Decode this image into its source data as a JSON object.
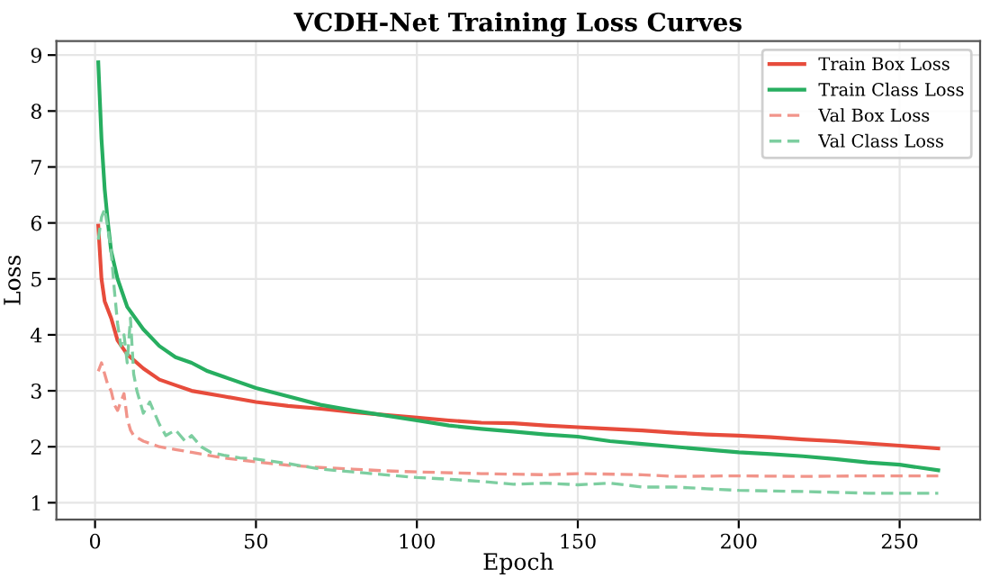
{
  "chart_data": {
    "type": "line",
    "title": "VCDH-Net Training Loss Curves",
    "xlabel": "Epoch",
    "ylabel": "Loss",
    "xlim": [
      -12,
      275
    ],
    "xticks": [
      0,
      50,
      100,
      150,
      200,
      250
    ],
    "ylim": [
      0.7,
      9.25
    ],
    "yticks": [
      1,
      2,
      3,
      4,
      5,
      6,
      7,
      8,
      9
    ],
    "grid": true,
    "legend": "top right",
    "marker": "none",
    "series": [
      {
        "name": "Train Box Loss",
        "color": "#e74c3c",
        "line_style": "solid",
        "x": [
          1,
          2,
          3,
          5,
          7,
          10,
          15,
          20,
          25,
          30,
          40,
          50,
          60,
          70,
          80,
          90,
          100,
          110,
          120,
          130,
          140,
          150,
          160,
          170,
          180,
          190,
          200,
          210,
          220,
          230,
          240,
          250,
          262
        ],
        "values": [
          5.95,
          5.0,
          4.6,
          4.3,
          3.9,
          3.65,
          3.4,
          3.2,
          3.1,
          3.0,
          2.9,
          2.8,
          2.73,
          2.68,
          2.62,
          2.57,
          2.52,
          2.47,
          2.43,
          2.42,
          2.38,
          2.35,
          2.32,
          2.29,
          2.25,
          2.22,
          2.2,
          2.17,
          2.13,
          2.1,
          2.06,
          2.02,
          1.97
        ]
      },
      {
        "name": "Train Class Loss",
        "color": "#27ae60",
        "line_style": "solid",
        "x": [
          1,
          2,
          3,
          4,
          5,
          7,
          10,
          15,
          20,
          25,
          30,
          35,
          40,
          50,
          60,
          70,
          80,
          90,
          100,
          110,
          120,
          130,
          140,
          150,
          160,
          170,
          180,
          190,
          200,
          210,
          220,
          230,
          240,
          250,
          262
        ],
        "values": [
          8.87,
          7.5,
          6.6,
          6.0,
          5.5,
          5.0,
          4.5,
          4.1,
          3.8,
          3.6,
          3.5,
          3.35,
          3.25,
          3.05,
          2.9,
          2.75,
          2.65,
          2.56,
          2.47,
          2.38,
          2.32,
          2.27,
          2.22,
          2.18,
          2.1,
          2.05,
          2.0,
          1.95,
          1.9,
          1.87,
          1.83,
          1.78,
          1.72,
          1.68,
          1.58
        ]
      },
      {
        "name": "Val Box Loss",
        "color": "#f1948a",
        "line_style": "dashed",
        "x": [
          1,
          2,
          3,
          4,
          5,
          6,
          7,
          8,
          9,
          10,
          11,
          12,
          15,
          20,
          25,
          30,
          40,
          50,
          60,
          70,
          80,
          90,
          100,
          120,
          140,
          150,
          170,
          180,
          200,
          220,
          240,
          262
        ],
        "values": [
          3.35,
          3.5,
          3.3,
          3.1,
          3.0,
          2.75,
          2.65,
          2.8,
          2.95,
          2.5,
          2.3,
          2.2,
          2.1,
          2.0,
          1.95,
          1.9,
          1.8,
          1.73,
          1.67,
          1.63,
          1.6,
          1.57,
          1.55,
          1.52,
          1.5,
          1.52,
          1.5,
          1.47,
          1.48,
          1.47,
          1.48,
          1.48
        ]
      },
      {
        "name": "Val Class Loss",
        "color": "#7dcea0",
        "line_style": "dashed",
        "x": [
          1,
          2,
          3,
          4,
          5,
          6,
          7,
          8,
          9,
          10,
          11,
          12,
          13,
          15,
          17,
          20,
          22,
          25,
          28,
          30,
          33,
          36,
          40,
          45,
          50,
          60,
          70,
          80,
          90,
          100,
          110,
          120,
          130,
          140,
          150,
          160,
          170,
          180,
          190,
          200,
          220,
          240,
          262
        ],
        "values": [
          5.7,
          6.1,
          6.25,
          5.9,
          5.5,
          4.8,
          4.2,
          3.8,
          4.0,
          3.5,
          4.3,
          3.3,
          3.0,
          2.6,
          2.8,
          2.4,
          2.2,
          2.3,
          2.1,
          2.2,
          2.0,
          1.9,
          1.85,
          1.8,
          1.78,
          1.7,
          1.6,
          1.55,
          1.5,
          1.45,
          1.42,
          1.38,
          1.33,
          1.35,
          1.32,
          1.35,
          1.28,
          1.28,
          1.25,
          1.22,
          1.2,
          1.17,
          1.17
        ]
      }
    ]
  }
}
